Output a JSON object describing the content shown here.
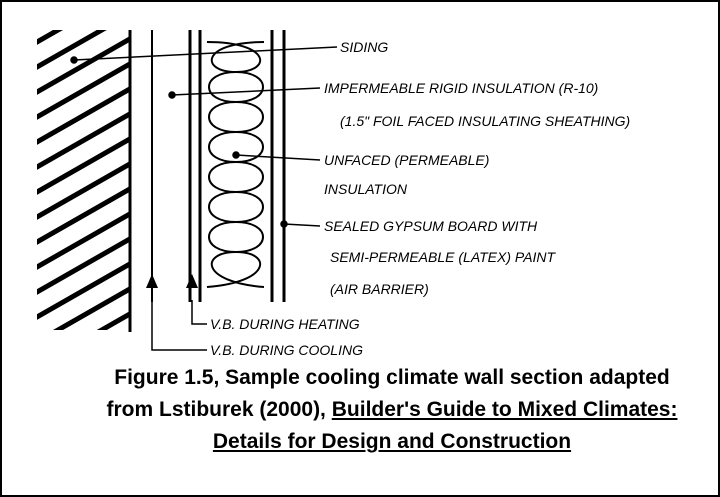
{
  "labels": {
    "siding": "SIDING",
    "rigid_insulation": [
      "IMPERMEABLE RIGID INSULATION (R-10)",
      "(1.5\" FOIL FACED INSULATING SHEATHING)"
    ],
    "unfaced_insulation": [
      "UNFACED (PERMEABLE)",
      "INSULATION"
    ],
    "gypsum_board": [
      "SEALED GYPSUM BOARD WITH",
      "SEMI-PERMEABLE (LATEX) PAINT",
      "(AIR BARRIER)"
    ],
    "vb_heating": "V.B. DURING HEATING",
    "vb_cooling": "V.B. DURING COOLING"
  },
  "caption": {
    "text": "Figure 1.5, Sample cooling climate wall section adapted from Lstiburek (2000),",
    "title": "Builder's Guide to Mixed Climates: Details for Design and Construction"
  }
}
